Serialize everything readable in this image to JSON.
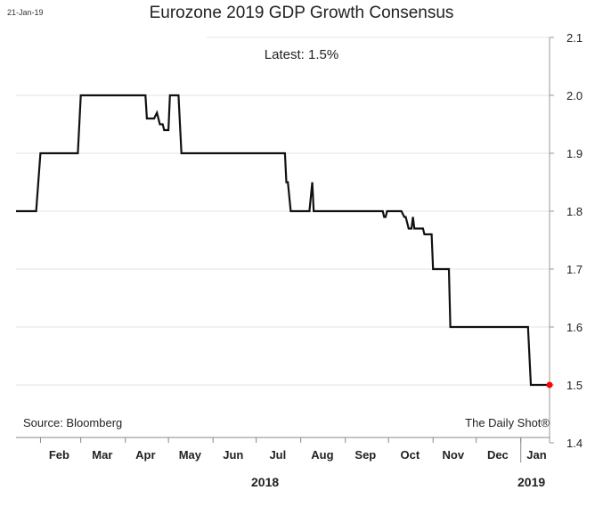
{
  "header": {
    "date_stamp": "21-Jan-19",
    "title": "Eurozone 2019 GDP Growth Consensus",
    "latest": "Latest:  1.5%"
  },
  "footer": {
    "source": "Source: Bloomberg",
    "credit": "The Daily Shot®",
    "year_2018": "2018",
    "year_2019": "2019"
  },
  "chart_data": {
    "type": "line",
    "title": "Eurozone 2019 GDP Growth Consensus",
    "xlabel": "",
    "ylabel": "",
    "ylim": [
      1.4,
      2.1
    ],
    "yticks": [
      1.4,
      1.5,
      1.6,
      1.7,
      1.8,
      1.9,
      2.0,
      2.1
    ],
    "ytick_labels": [
      "1.4",
      "1.5",
      "1.6",
      "1.7",
      "1.8",
      "1.9",
      "2.0",
      "2.1"
    ],
    "x_range": [
      "2018-01-15",
      "2019-01-21"
    ],
    "x_tick_labels": [
      "Feb",
      "Mar",
      "Apr",
      "May",
      "Jun",
      "Jul",
      "Aug",
      "Sep",
      "Oct",
      "Nov",
      "Dec",
      "Jan"
    ],
    "grid": "horizontal",
    "line_color": "#111111",
    "marker_color": "#ff0000",
    "series": [
      {
        "points": [
          [
            "2018-01-15",
            1.8
          ],
          [
            "2018-01-29",
            1.8
          ],
          [
            "2018-02-01",
            1.9
          ],
          [
            "2018-02-27",
            1.9
          ],
          [
            "2018-03-01",
            2.0
          ],
          [
            "2018-04-15",
            2.0
          ],
          [
            "2018-04-16",
            1.96
          ],
          [
            "2018-04-21",
            1.96
          ],
          [
            "2018-04-23",
            1.97
          ],
          [
            "2018-04-25",
            1.95
          ],
          [
            "2018-04-27",
            1.95
          ],
          [
            "2018-04-28",
            1.94
          ],
          [
            "2018-05-01",
            1.94
          ],
          [
            "2018-05-02",
            2.0
          ],
          [
            "2018-05-08",
            2.0
          ],
          [
            "2018-05-10",
            1.9
          ],
          [
            "2018-07-21",
            1.9
          ],
          [
            "2018-07-22",
            1.85
          ],
          [
            "2018-07-23",
            1.85
          ],
          [
            "2018-07-25",
            1.8
          ],
          [
            "2018-08-07",
            1.8
          ],
          [
            "2018-08-09",
            1.85
          ],
          [
            "2018-08-10",
            1.8
          ],
          [
            "2018-09-27",
            1.8
          ],
          [
            "2018-09-28",
            1.79
          ],
          [
            "2018-09-29",
            1.79
          ],
          [
            "2018-09-30",
            1.8
          ],
          [
            "2018-10-10",
            1.8
          ],
          [
            "2018-10-12",
            1.79
          ],
          [
            "2018-10-13",
            1.79
          ],
          [
            "2018-10-15",
            1.77
          ],
          [
            "2018-10-17",
            1.77
          ],
          [
            "2018-10-18",
            1.79
          ],
          [
            "2018-10-19",
            1.77
          ],
          [
            "2018-10-25",
            1.77
          ],
          [
            "2018-10-26",
            1.76
          ],
          [
            "2018-10-31",
            1.76
          ],
          [
            "2018-11-01",
            1.7
          ],
          [
            "2018-11-12",
            1.7
          ],
          [
            "2018-11-13",
            1.6
          ],
          [
            "2019-01-06",
            1.6
          ],
          [
            "2019-01-08",
            1.5
          ],
          [
            "2019-01-21",
            1.5
          ]
        ]
      }
    ],
    "latest_point": [
      "2019-01-21",
      1.5
    ]
  }
}
